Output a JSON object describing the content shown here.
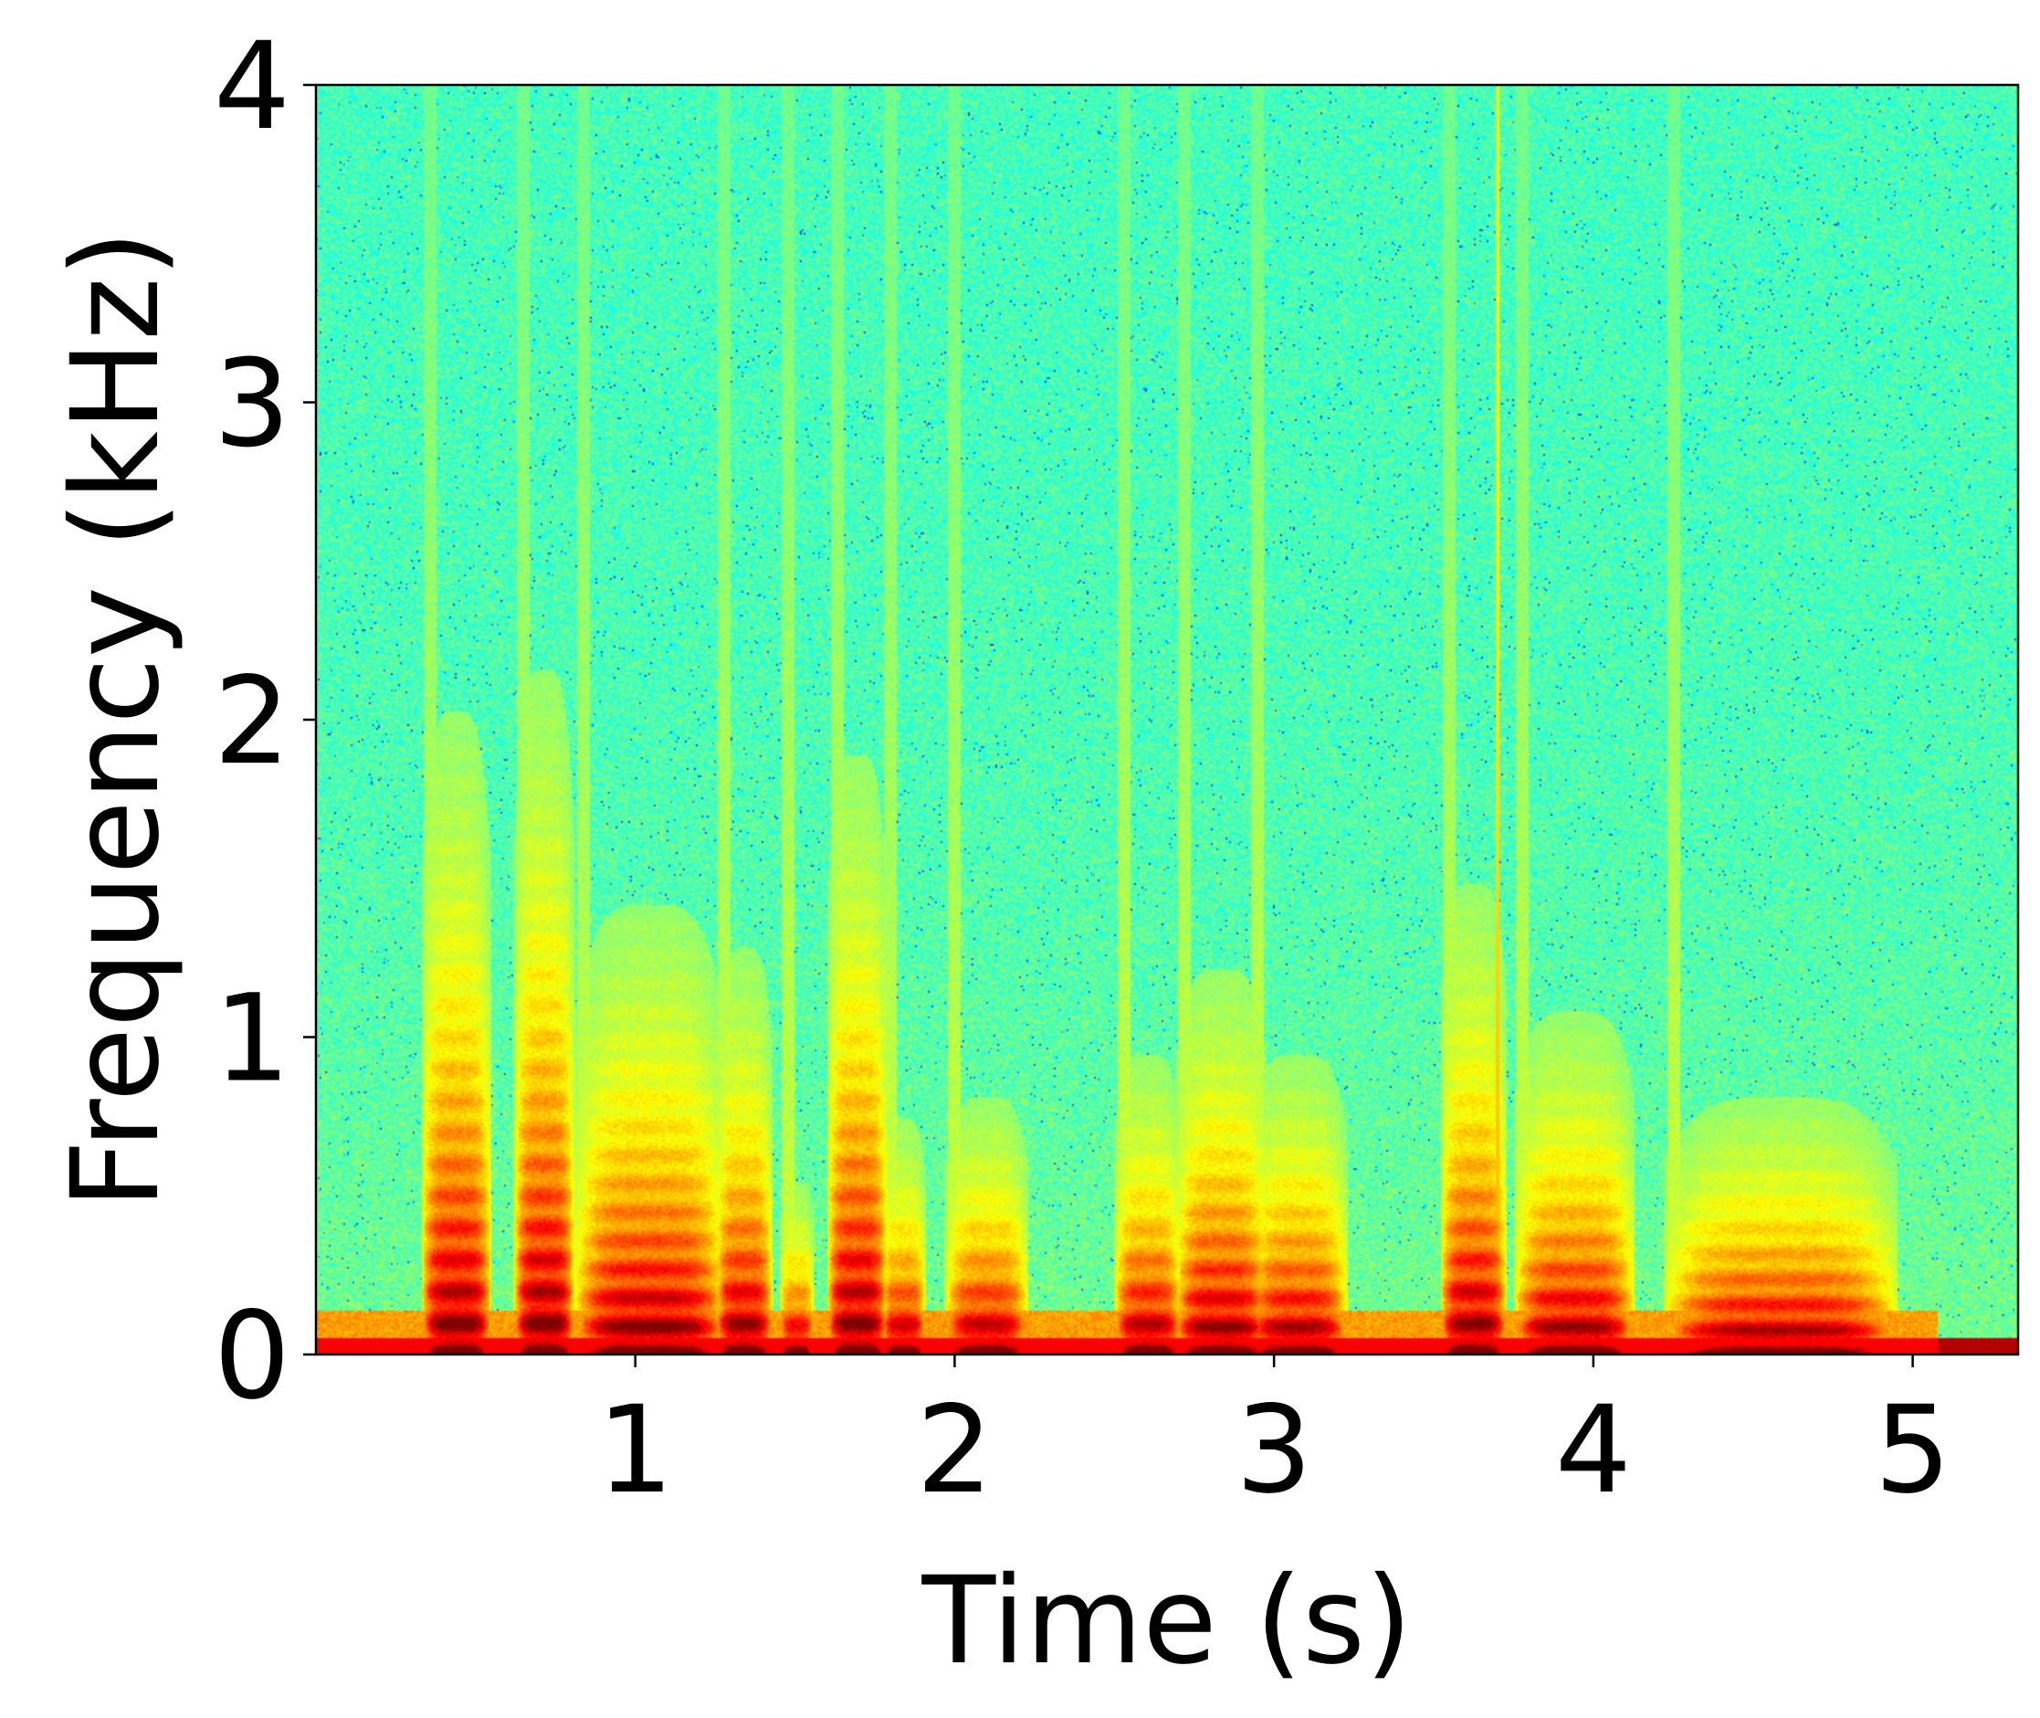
{
  "chart_data": {
    "type": "heatmap",
    "title": "",
    "xlabel": "Time (s)",
    "ylabel": "Frequency (kHz)",
    "xlim": [
      0,
      5.33
    ],
    "ylim": [
      0,
      4
    ],
    "x_ticks": [
      1,
      2,
      3,
      4,
      5
    ],
    "x_tick_labels": [
      "1",
      "2",
      "3",
      "4",
      "5"
    ],
    "y_ticks": [
      0,
      1,
      2,
      3,
      4
    ],
    "y_tick_labels": [
      "0",
      "1",
      "2",
      "3",
      "4"
    ],
    "colormap": "jet",
    "grid": false,
    "legend": "none",
    "x_unit": "s",
    "y_unit": "kHz",
    "low_frequency_band_khz": [
      0,
      0.05
    ],
    "speech_end_s": 5.08,
    "narrowband_line": {
      "time_s": 3.7,
      "freq_range_khz": [
        0,
        4
      ]
    },
    "voiced_segments": [
      {
        "start_s": 0.36,
        "end_s": 0.52,
        "max_freq_khz": 1.5,
        "harmonic_spacing_khz": 0.1
      },
      {
        "start_s": 0.65,
        "end_s": 0.78,
        "max_freq_khz": 1.6,
        "harmonic_spacing_khz": 0.1
      },
      {
        "start_s": 0.84,
        "end_s": 1.25,
        "max_freq_khz": 1.05,
        "harmonic_spacing_khz": 0.09
      },
      {
        "start_s": 1.28,
        "end_s": 1.4,
        "max_freq_khz": 0.95,
        "harmonic_spacing_khz": 0.1
      },
      {
        "start_s": 1.48,
        "end_s": 1.53,
        "max_freq_khz": 0.4,
        "harmonic_spacing_khz": 0.1
      },
      {
        "start_s": 1.63,
        "end_s": 1.76,
        "max_freq_khz": 1.4,
        "harmonic_spacing_khz": 0.1
      },
      {
        "start_s": 1.8,
        "end_s": 1.88,
        "max_freq_khz": 0.55,
        "harmonic_spacing_khz": 0.1
      },
      {
        "start_s": 2.0,
        "end_s": 2.2,
        "max_freq_khz": 0.6,
        "harmonic_spacing_khz": 0.1
      },
      {
        "start_s": 2.53,
        "end_s": 2.68,
        "max_freq_khz": 0.7,
        "harmonic_spacing_khz": 0.1
      },
      {
        "start_s": 2.72,
        "end_s": 2.95,
        "max_freq_khz": 0.9,
        "harmonic_spacing_khz": 0.09
      },
      {
        "start_s": 2.95,
        "end_s": 3.2,
        "max_freq_khz": 0.7,
        "harmonic_spacing_khz": 0.09
      },
      {
        "start_s": 3.55,
        "end_s": 3.7,
        "max_freq_khz": 1.1,
        "harmonic_spacing_khz": 0.1
      },
      {
        "start_s": 3.78,
        "end_s": 4.1,
        "max_freq_khz": 0.8,
        "harmonic_spacing_khz": 0.09
      },
      {
        "start_s": 4.25,
        "end_s": 4.92,
        "max_freq_khz": 0.6,
        "harmonic_spacing_khz": 0.08
      }
    ]
  }
}
